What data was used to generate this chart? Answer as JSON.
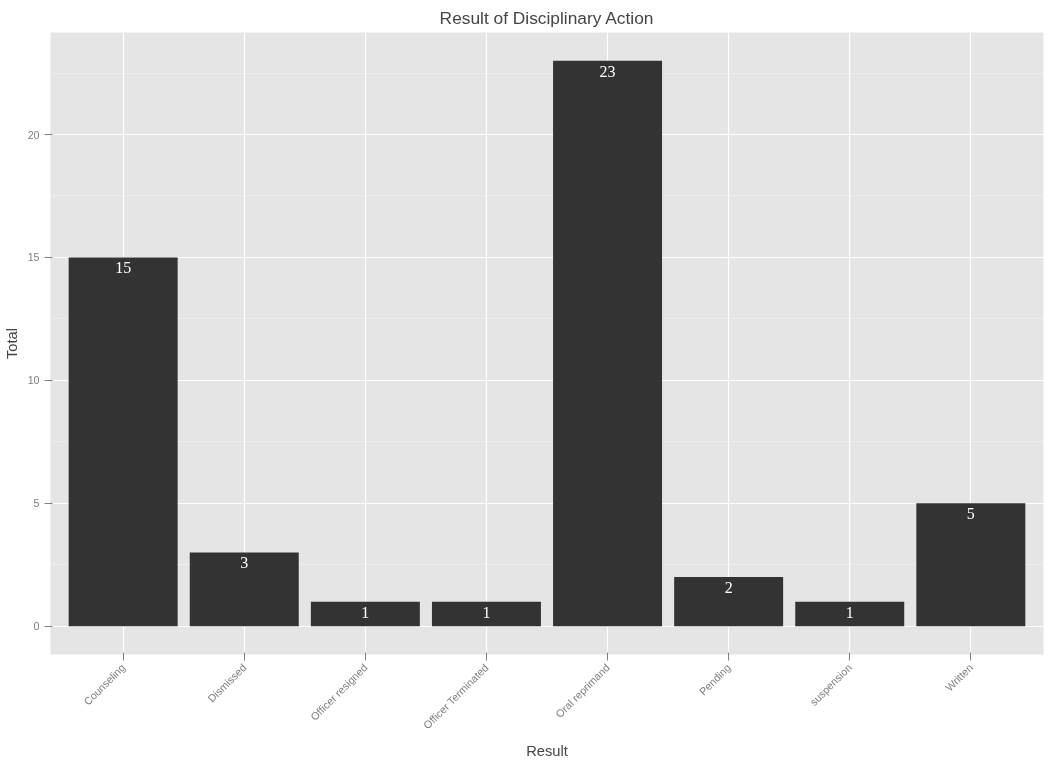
{
  "chart_data": {
    "type": "bar",
    "title": "Result of Disciplinary Action",
    "xlabel": "Result",
    "ylabel": "Total",
    "categories": [
      "Counseling",
      "Dismissed",
      "Officer resigned",
      "Officer Terminated",
      "Oral reprimand",
      "Pending",
      "suspension",
      "Written"
    ],
    "values": [
      15,
      3,
      1,
      1,
      23,
      2,
      1,
      5
    ],
    "color": "#333333",
    "ylim": [
      -1.15,
      24.15
    ],
    "yticks": [
      0,
      5,
      10,
      15,
      20
    ],
    "grid": true,
    "data_labels": true
  }
}
